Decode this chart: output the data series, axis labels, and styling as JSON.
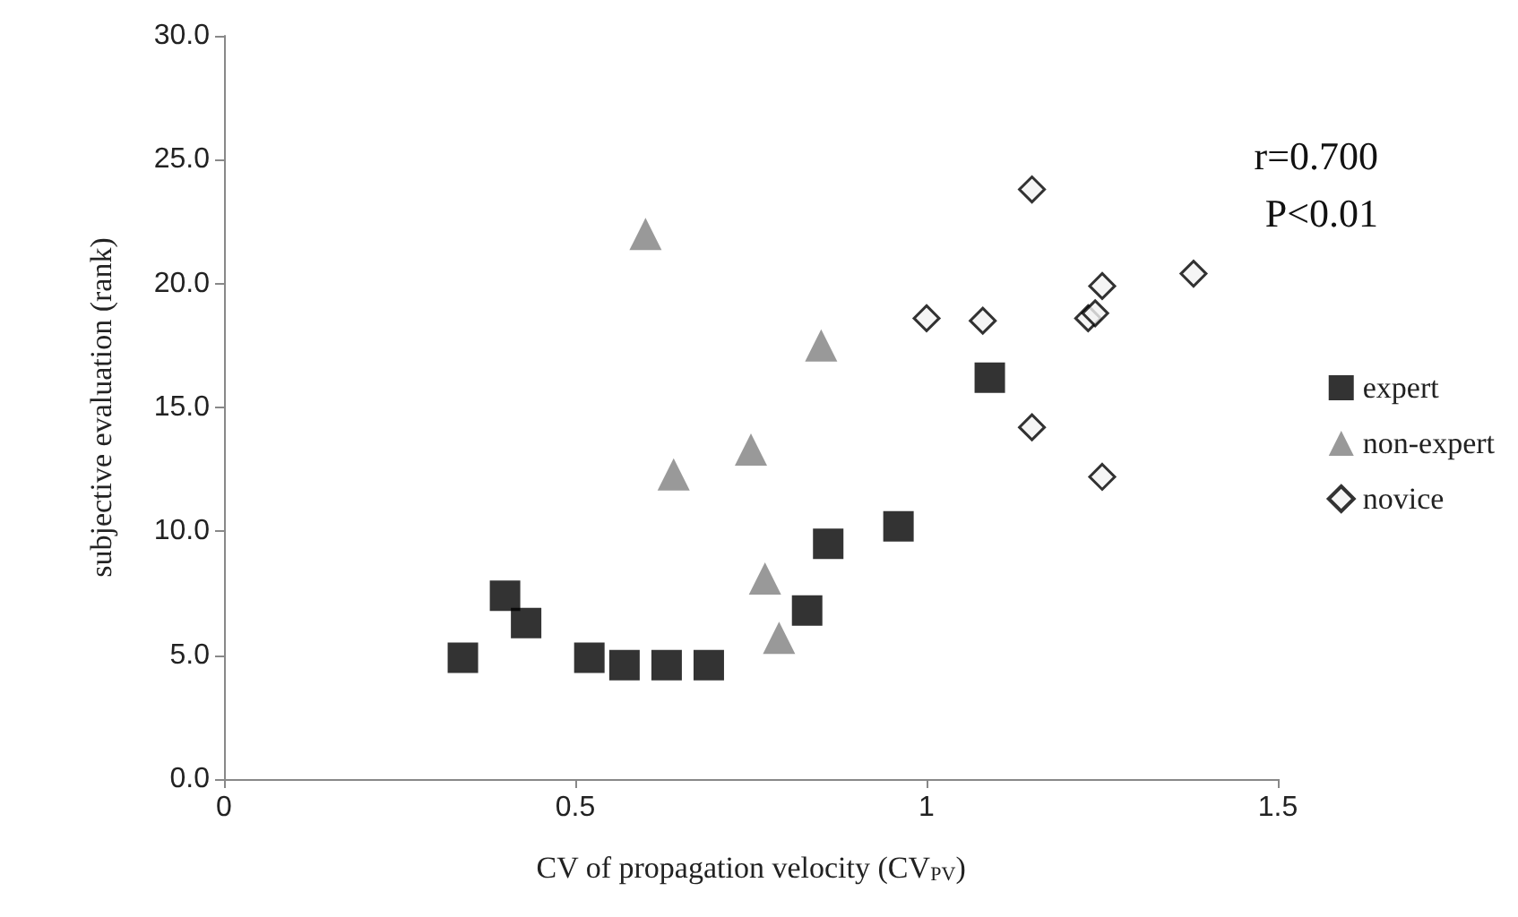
{
  "chart_data": {
    "type": "scatter",
    "xlabel": "CV of propagation velocity (CV$_{PV}$)",
    "ylabel": "subjective evaluation (rank)",
    "xlim": [
      0,
      1.5
    ],
    "xticks": [
      0,
      0.5,
      1,
      1.5
    ],
    "ylim": [
      0,
      30
    ],
    "yticks": [
      {
        "value": 0,
        "label": "0.0"
      },
      {
        "value": 5,
        "label": "5.0"
      },
      {
        "value": 10,
        "label": "10.0"
      },
      {
        "value": 15,
        "label": "15.0"
      },
      {
        "value": 20,
        "label": "20.0"
      },
      {
        "value": 25,
        "label": "25.0"
      },
      {
        "value": 30,
        "label": "30.0"
      }
    ],
    "grid": false,
    "legend": "right",
    "annotations": [
      "r=0.700",
      "P<0.01"
    ],
    "series": [
      {
        "name": "expert",
        "color": "#000000",
        "marker": "square",
        "x": [
          0.34,
          0.4,
          0.43,
          0.52,
          0.57,
          0.63,
          0.69,
          0.83,
          0.86,
          0.96,
          1.09
        ],
        "values": [
          4.9,
          7.4,
          6.3,
          4.9,
          4.6,
          4.6,
          4.6,
          6.8,
          9.5,
          10.2,
          16.2
        ]
      },
      {
        "name": "non-expert",
        "color": "#808080",
        "marker": "triangle",
        "x": [
          0.6,
          0.64,
          0.75,
          0.77,
          0.79,
          0.85
        ],
        "values": [
          22.0,
          12.3,
          13.3,
          8.1,
          5.7,
          17.5
        ]
      },
      {
        "name": "novice",
        "color": "#f2f2f2",
        "marker": "diamond",
        "x": [
          1.0,
          1.08,
          1.15,
          1.15,
          1.23,
          1.24,
          1.25,
          1.25,
          1.38
        ],
        "values": [
          18.6,
          18.5,
          23.8,
          14.2,
          18.6,
          18.8,
          19.9,
          12.2,
          20.4
        ]
      }
    ]
  }
}
